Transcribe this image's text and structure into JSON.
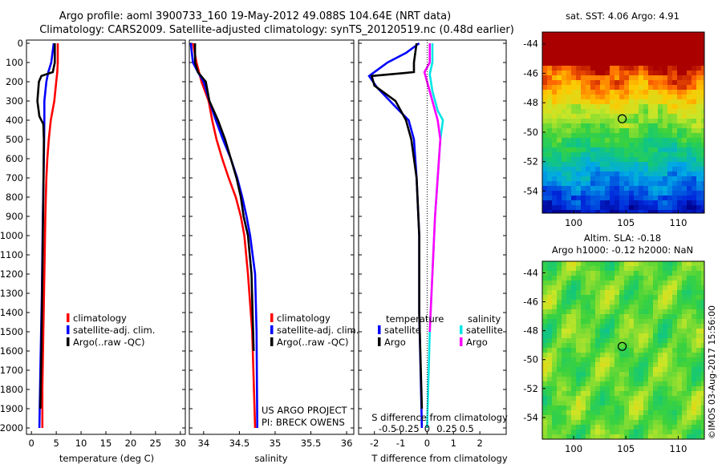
{
  "header": {
    "line1": "Argo profile: aoml 3900733_160 19-May-2012 49.088S 104.64E (NRT data)",
    "line2": "Climatology: CARS2009. Satellite-adjusted climatology: synTS_20120519.nc (0.48d earlier)"
  },
  "credits": {
    "project": "US ARGO PROJECT",
    "pi": "PI: BRECK OWENS"
  },
  "stamp": "©IMOS 03-Aug-2017 15:56:00",
  "colors": {
    "climatology": "#ff0000",
    "satellite": "#0000ff",
    "argo": "#000000",
    "sat_salinity": "#00e5e5",
    "argo_salinity": "#ff00ff"
  },
  "chart_data": [
    {
      "type": "line",
      "xlabel": "temperature (deg C)",
      "ylim": [
        2080,
        0
      ],
      "xlim": [
        -1,
        31
      ],
      "xticks": [
        0,
        5,
        10,
        15,
        20,
        25,
        30
      ],
      "yticks": [
        0,
        100,
        200,
        300,
        400,
        500,
        600,
        700,
        800,
        900,
        1000,
        1100,
        1200,
        1300,
        1400,
        1500,
        1600,
        1700,
        1800,
        1900,
        2000
      ],
      "legend": [
        "climatology",
        "satellite-adj. clim.",
        "Argo(..raw -QC)"
      ],
      "series": [
        {
          "name": "climatology",
          "color": "#ff0000",
          "points": [
            [
              5.3,
              0
            ],
            [
              5.3,
              100
            ],
            [
              5.2,
              150
            ],
            [
              5.0,
              200
            ],
            [
              4.6,
              300
            ],
            [
              3.9,
              400
            ],
            [
              3.5,
              500
            ],
            [
              3.2,
              600
            ],
            [
              3.0,
              700
            ],
            [
              2.8,
              900
            ],
            [
              2.6,
              1200
            ],
            [
              2.4,
              1500
            ],
            [
              2.2,
              1800
            ],
            [
              2.2,
              2000
            ]
          ]
        },
        {
          "name": "satellite-adj. clim.",
          "color": "#0000ff",
          "points": [
            [
              4.5,
              0
            ],
            [
              4.0,
              100
            ],
            [
              3.4,
              150
            ],
            [
              3.0,
              200
            ],
            [
              2.6,
              300
            ],
            [
              2.6,
              400
            ],
            [
              2.5,
              600
            ],
            [
              2.3,
              900
            ],
            [
              2.1,
              1300
            ],
            [
              1.8,
              1700
            ],
            [
              1.6,
              2000
            ]
          ]
        },
        {
          "name": "Argo(..raw -QC)",
          "color": "#000000",
          "points": [
            [
              4.7,
              0
            ],
            [
              4.7,
              100
            ],
            [
              4.3,
              150
            ],
            [
              2.0,
              170
            ],
            [
              1.5,
              200
            ],
            [
              1.2,
              300
            ],
            [
              1.6,
              380
            ],
            [
              2.4,
              420
            ],
            [
              2.5,
              500
            ],
            [
              2.4,
              800
            ],
            [
              2.2,
              1200
            ],
            [
              2.0,
              1600
            ],
            [
              1.8,
              1900
            ]
          ]
        }
      ]
    },
    {
      "type": "line",
      "xlabel": "salinity",
      "ylim": [
        2080,
        0
      ],
      "xlim": [
        33.8,
        36.1
      ],
      "xticks": [
        34,
        34.5,
        35,
        35.5,
        36
      ],
      "legend": [
        "climatology",
        "satellite-adj. clim.",
        "Argo(..raw -QC)"
      ],
      "series": [
        {
          "name": "climatology",
          "color": "#ff0000",
          "points": [
            [
              33.85,
              0
            ],
            [
              33.9,
              100
            ],
            [
              33.97,
              200
            ],
            [
              34.07,
              300
            ],
            [
              34.12,
              400
            ],
            [
              34.18,
              500
            ],
            [
              34.26,
              600
            ],
            [
              34.35,
              700
            ],
            [
              34.45,
              800
            ],
            [
              34.52,
              900
            ],
            [
              34.57,
              1000
            ],
            [
              34.62,
              1200
            ],
            [
              34.68,
              1500
            ],
            [
              34.72,
              2000
            ]
          ]
        },
        {
          "name": "satellite-adj. clim.",
          "color": "#0000ff",
          "points": [
            [
              33.82,
              0
            ],
            [
              33.85,
              100
            ],
            [
              33.92,
              150
            ],
            [
              34.0,
              200
            ],
            [
              34.08,
              300
            ],
            [
              34.17,
              400
            ],
            [
              34.27,
              500
            ],
            [
              34.38,
              600
            ],
            [
              34.47,
              700
            ],
            [
              34.54,
              800
            ],
            [
              34.6,
              900
            ],
            [
              34.65,
              1000
            ],
            [
              34.72,
              1200
            ],
            [
              34.74,
              1500
            ],
            [
              34.75,
              2000
            ]
          ]
        },
        {
          "name": "Argo(..raw -QC)",
          "color": "#000000",
          "points": [
            [
              33.88,
              0
            ],
            [
              33.88,
              100
            ],
            [
              33.92,
              150
            ],
            [
              34.03,
              200
            ],
            [
              34.08,
              300
            ],
            [
              34.2,
              400
            ],
            [
              34.3,
              500
            ],
            [
              34.38,
              600
            ],
            [
              34.46,
              700
            ],
            [
              34.52,
              800
            ],
            [
              34.56,
              900
            ],
            [
              34.62,
              1000
            ],
            [
              34.67,
              1200
            ],
            [
              34.7,
              1600
            ]
          ]
        }
      ]
    },
    {
      "type": "line",
      "xlabel": "T difference from climatology",
      "ylim": [
        2080,
        0
      ],
      "xlim": [
        -2.6,
        3.0
      ],
      "xticks": [
        -2,
        -1,
        0,
        1,
        2
      ],
      "top_axis_label": "S difference from climatology",
      "top_ticks": [
        "-0.5",
        "-0.25",
        "0",
        "0.25",
        "0.5"
      ],
      "legend_groups": [
        {
          "title": "temperature",
          "items": [
            "satellite",
            "Argo"
          ]
        },
        {
          "title": "salinity",
          "items": [
            "satellite",
            "Argo"
          ]
        }
      ],
      "series": [
        {
          "name": "satellite",
          "color": "#0000ff",
          "points": [
            [
              -0.3,
              0
            ],
            [
              -0.8,
              50
            ],
            [
              -1.5,
              100
            ],
            [
              -2.2,
              170
            ],
            [
              -1.9,
              230
            ],
            [
              -1.2,
              330
            ],
            [
              -0.7,
              400
            ],
            [
              -0.5,
              500
            ],
            [
              -0.4,
              700
            ],
            [
              -0.3,
              1000
            ],
            [
              -0.3,
              1400
            ],
            [
              -0.2,
              2000
            ]
          ]
        },
        {
          "name": "Argo",
          "color": "#000000",
          "points": [
            [
              -0.4,
              0
            ],
            [
              -0.5,
              100
            ],
            [
              -0.5,
              150
            ],
            [
              -2.1,
              170
            ],
            [
              -2.0,
              220
            ],
            [
              -1.2,
              300
            ],
            [
              -0.8,
              400
            ],
            [
              -0.6,
              500
            ],
            [
              -0.5,
              600
            ],
            [
              -0.4,
              700
            ],
            [
              -0.3,
              1000
            ],
            [
              -0.3,
              1400
            ],
            [
              -0.2,
              1900
            ]
          ]
        },
        {
          "name": "salinity satellite",
          "color": "#00e5e5",
          "points": [
            [
              0.2,
              0
            ],
            [
              0.2,
              100
            ],
            [
              0.1,
              160
            ],
            [
              0.2,
              250
            ],
            [
              0.4,
              350
            ],
            [
              0.6,
              400
            ],
            [
              0.5,
              500
            ],
            [
              0.4,
              700
            ],
            [
              0.3,
              900
            ],
            [
              0.2,
              1200
            ],
            [
              0.1,
              1500
            ],
            [
              0.0,
              2000
            ]
          ]
        },
        {
          "name": "salinity Argo",
          "color": "#ff00ff",
          "points": [
            [
              0.1,
              0
            ],
            [
              0.1,
              100
            ],
            [
              -0.1,
              150
            ],
            [
              0.0,
              200
            ],
            [
              0.2,
              300
            ],
            [
              0.4,
              400
            ],
            [
              0.5,
              500
            ],
            [
              0.4,
              700
            ],
            [
              0.3,
              900
            ],
            [
              0.2,
              1200
            ],
            [
              0.1,
              1500
            ]
          ]
        }
      ]
    },
    {
      "type": "heatmap",
      "title": "sat. SST: 4.06 Argo: 4.91",
      "xlim": [
        97,
        112.5
      ],
      "ylim": [
        -55.5,
        -43.2
      ],
      "xticks": [
        100,
        105,
        110
      ],
      "yticks": [
        -44,
        -46,
        -48,
        -50,
        -52,
        -54
      ],
      "marker": [
        104.64,
        -49.09
      ]
    },
    {
      "type": "heatmap",
      "title": "Altim. SLA: -0.18",
      "subtitle": "Argo h1000: -0.12 h2000: NaN",
      "xlim": [
        97,
        112.5
      ],
      "ylim": [
        -55.5,
        -43.2
      ],
      "xticks": [
        100,
        105,
        110
      ],
      "yticks": [
        -44,
        -46,
        -48,
        -50,
        -52,
        -54
      ],
      "marker": [
        104.64,
        -49.09
      ]
    }
  ]
}
